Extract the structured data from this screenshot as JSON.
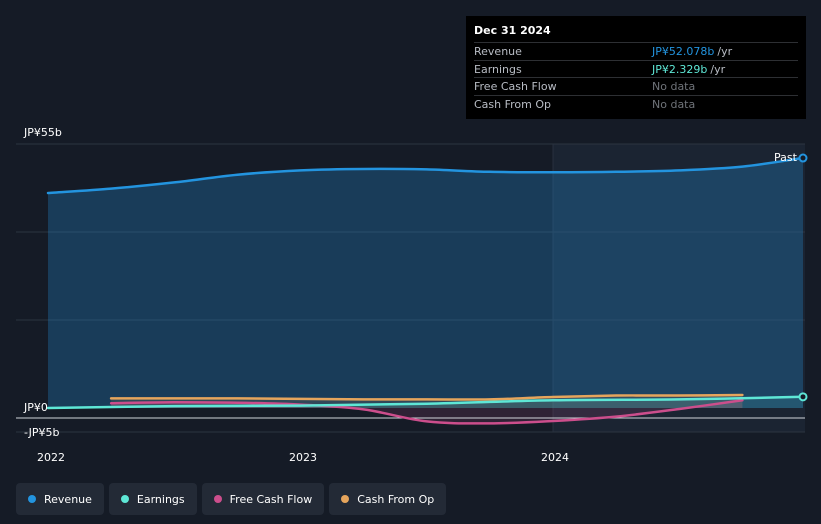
{
  "chart_data": {
    "type": "area",
    "x_ticks": [
      "2022",
      "2023",
      "2024"
    ],
    "y_ticks": [
      "JP¥55b",
      "JP¥0",
      "-JP¥5b"
    ],
    "ylim": [
      -5,
      55
    ],
    "xlim": [
      2022.0,
      2024.99
    ],
    "past_label": "Past",
    "series": [
      {
        "name": "Revenue",
        "color": "#2394df",
        "x": [
          2022.0,
          2022.25,
          2022.5,
          2022.75,
          2023.0,
          2023.25,
          2023.5,
          2023.75,
          2024.0,
          2024.25,
          2024.5,
          2024.75,
          2024.99
        ],
        "y": [
          44.8,
          45.7,
          47.0,
          48.6,
          49.5,
          49.8,
          49.7,
          49.2,
          49.1,
          49.2,
          49.5,
          50.3,
          52.078
        ]
      },
      {
        "name": "Earnings",
        "color": "#5ee7d6",
        "x": [
          2022.0,
          2022.5,
          2023.0,
          2023.5,
          2024.0,
          2024.5,
          2024.99
        ],
        "y": [
          0.0,
          0.4,
          0.5,
          0.9,
          1.6,
          1.8,
          2.329
        ]
      },
      {
        "name": "Free Cash Flow",
        "color": "#cc4e8c",
        "x": [
          2022.25,
          2022.5,
          2022.75,
          2023.0,
          2023.25,
          2023.5,
          2023.75,
          2024.0,
          2024.25,
          2024.5,
          2024.75
        ],
        "y": [
          1.0,
          1.2,
          1.1,
          0.7,
          -0.3,
          -2.8,
          -3.2,
          -2.7,
          -1.8,
          -0.2,
          1.6
        ]
      },
      {
        "name": "Cash From Op",
        "color": "#e6a55c",
        "x": [
          2022.25,
          2022.5,
          2022.75,
          2023.0,
          2023.25,
          2023.5,
          2023.75,
          2024.0,
          2024.25,
          2024.5,
          2024.75
        ],
        "y": [
          2.0,
          2.0,
          2.0,
          1.9,
          1.8,
          1.8,
          1.8,
          2.3,
          2.6,
          2.6,
          2.7
        ]
      }
    ]
  },
  "tooltip": {
    "date": "Dec 31 2024",
    "rows": [
      {
        "label": "Revenue",
        "value": "JP¥52.078b",
        "unit": "/yr",
        "color": "#2394df"
      },
      {
        "label": "Earnings",
        "value": "JP¥2.329b",
        "unit": "/yr",
        "color": "#5ee7d6"
      },
      {
        "label": "Free Cash Flow",
        "value": "No data",
        "unit": "",
        "color": "#6f7379"
      },
      {
        "label": "Cash From Op",
        "value": "No data",
        "unit": "",
        "color": "#6f7379"
      }
    ]
  },
  "legend": [
    {
      "label": "Revenue",
      "color": "#2394df"
    },
    {
      "label": "Earnings",
      "color": "#5ee7d6"
    },
    {
      "label": "Free Cash Flow",
      "color": "#cc4e8c"
    },
    {
      "label": "Cash From Op",
      "color": "#e6a55c"
    }
  ]
}
